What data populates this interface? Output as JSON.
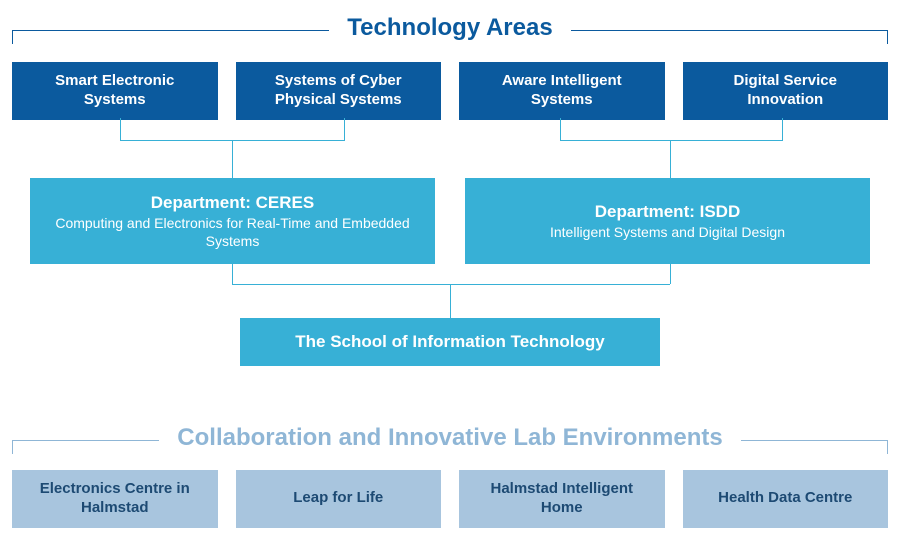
{
  "colors": {
    "title_primary": "#0b5a9e",
    "tech_box_bg": "#0b5a9e",
    "dept_box_bg": "#37b0d6",
    "school_box_bg": "#37b0d6",
    "lab_box_bg": "#a8c5de",
    "lab_text": "#1d4a73",
    "title_secondary": "#8fb6d6",
    "connector": "#37b0d6"
  },
  "titles": {
    "tech": "Technology Areas",
    "collab": "Collaboration and Innovative Lab Environments"
  },
  "tech_areas": [
    {
      "label": "Smart Electronic Systems"
    },
    {
      "label": "Systems of Cyber Physical Systems"
    },
    {
      "label": "Aware Intelligent Systems"
    },
    {
      "label": "Digital Service Innovation"
    }
  ],
  "departments": [
    {
      "title": "Department: CERES",
      "sub": "Computing and Electronics for Real-Time and Embedded Systems"
    },
    {
      "title": "Department: ISDD",
      "sub": "Intelligent Systems and Digital Design"
    }
  ],
  "school": {
    "label": "The School of Information Technology"
  },
  "labs": [
    {
      "label": "Electronics Centre in Halmstad"
    },
    {
      "label": "Leap for Life"
    },
    {
      "label": "Halmstad Intelligent Home"
    },
    {
      "label": "Health Data Centre"
    }
  ]
}
